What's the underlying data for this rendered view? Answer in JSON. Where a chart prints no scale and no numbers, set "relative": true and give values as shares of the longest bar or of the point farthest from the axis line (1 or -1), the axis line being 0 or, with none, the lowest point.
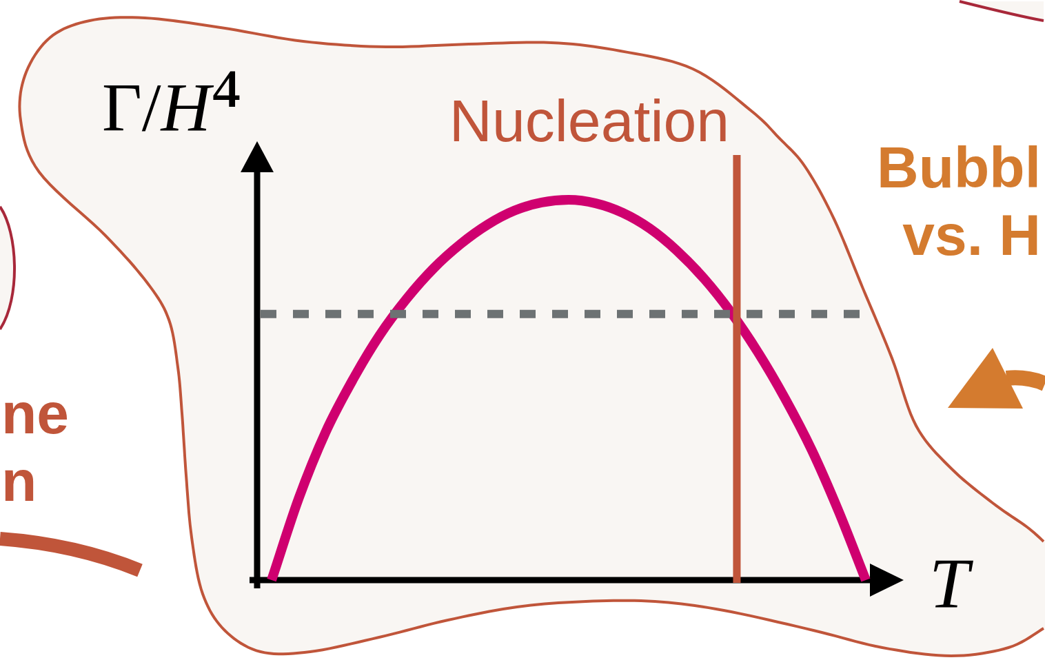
{
  "chart_data": {
    "type": "line",
    "title": "Nucleation",
    "xlabel": "T",
    "ylabel": "Γ/H⁴",
    "relative": true,
    "categories": [
      null,
      null,
      null,
      null,
      null,
      null,
      null,
      null,
      null,
      null,
      null,
      null,
      null,
      null,
      null,
      null,
      null,
      null,
      null,
      null,
      null,
      null,
      null
    ],
    "series": [
      {
        "color": "#cf006f",
        "values": [
          0,
          0.214,
          0.389,
          0.526,
          0.644,
          0.74,
          0.82,
          0.884,
          0.935,
          0.972,
          0.993,
          1,
          0.991,
          0.966,
          0.925,
          0.867,
          0.794,
          0.705,
          0.6,
          0.479,
          0.342,
          0.18,
          0
        ]
      }
    ],
    "ref_lines": [
      {
        "axis": "y",
        "value": 0.7,
        "color": "#6d7273",
        "line_style": "dashed"
      }
    ],
    "annotations": [
      "Bubbl",
      "vs. H",
      "ne",
      "n"
    ],
    "legend": false
  }
}
